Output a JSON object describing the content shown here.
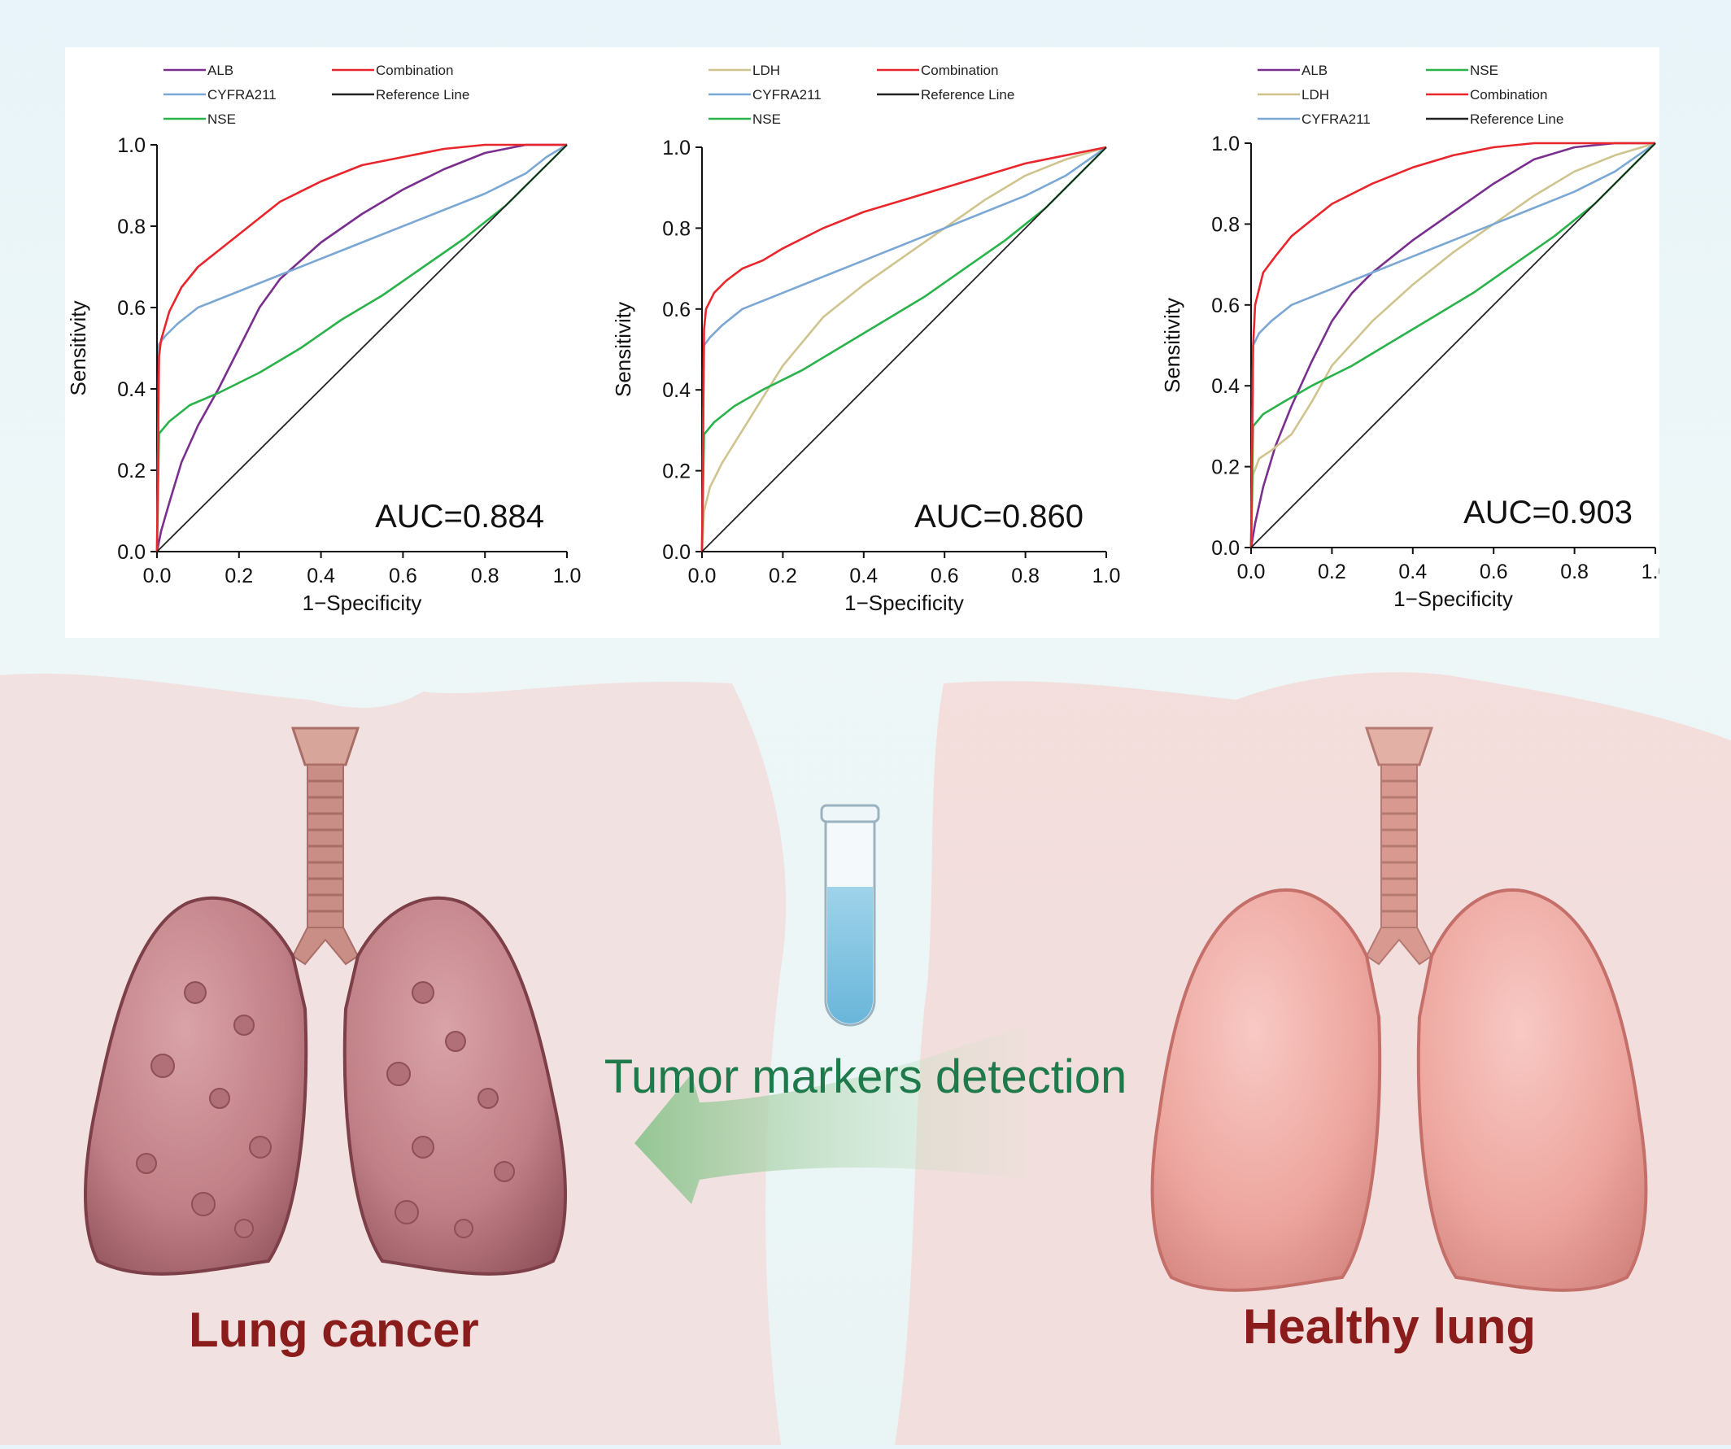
{
  "chart_data": [
    {
      "type": "line",
      "xlabel": "1−Specificity",
      "ylabel": "Sensitivity",
      "xlim": [
        0,
        1
      ],
      "ylim": [
        0,
        1
      ],
      "ticks": [
        "0.0",
        "0.2",
        "0.4",
        "0.6",
        "0.8",
        "1.0"
      ],
      "annotation": "AUC=0.884",
      "legend": {
        "placement": "top"
      },
      "series": [
        {
          "name": "ALB",
          "color": "#7a2e8e",
          "x": [
            0,
            0.01,
            0.03,
            0.06,
            0.1,
            0.15,
            0.2,
            0.25,
            0.3,
            0.4,
            0.5,
            0.6,
            0.7,
            0.8,
            0.9,
            1.0
          ],
          "y": [
            0,
            0.05,
            0.12,
            0.22,
            0.31,
            0.4,
            0.5,
            0.6,
            0.67,
            0.76,
            0.83,
            0.89,
            0.94,
            0.98,
            1.0,
            1.0
          ]
        },
        {
          "name": "CYFRA211",
          "color": "#7ba7d4",
          "x": [
            0,
            0.005,
            0.02,
            0.05,
            0.1,
            0.2,
            0.3,
            0.4,
            0.5,
            0.6,
            0.7,
            0.8,
            0.9,
            0.95,
            1.0
          ],
          "y": [
            0,
            0.51,
            0.53,
            0.56,
            0.6,
            0.64,
            0.68,
            0.72,
            0.76,
            0.8,
            0.84,
            0.88,
            0.93,
            0.97,
            1.0
          ]
        },
        {
          "name": "NSE",
          "color": "#2ab34a",
          "x": [
            0,
            0.005,
            0.03,
            0.08,
            0.15,
            0.25,
            0.35,
            0.45,
            0.55,
            0.65,
            0.75,
            0.85,
            0.92,
            1.0
          ],
          "y": [
            0,
            0.29,
            0.32,
            0.36,
            0.39,
            0.44,
            0.5,
            0.57,
            0.63,
            0.7,
            0.77,
            0.85,
            0.92,
            1.0
          ]
        },
        {
          "name": "Combination",
          "color": "#e8262b",
          "x": [
            0,
            0.005,
            0.01,
            0.03,
            0.06,
            0.1,
            0.15,
            0.2,
            0.25,
            0.3,
            0.4,
            0.5,
            0.6,
            0.7,
            0.8,
            0.9,
            1.0
          ],
          "y": [
            0,
            0.48,
            0.52,
            0.59,
            0.65,
            0.7,
            0.74,
            0.78,
            0.82,
            0.86,
            0.91,
            0.95,
            0.97,
            0.99,
            1.0,
            1.0,
            1.0
          ]
        },
        {
          "name": "Reference Line",
          "color": "#222222",
          "x": [
            0,
            1
          ],
          "y": [
            0,
            1
          ]
        }
      ]
    },
    {
      "type": "line",
      "xlabel": "1−Specificity",
      "ylabel": "Sensitivity",
      "xlim": [
        0,
        1
      ],
      "ylim": [
        0,
        1
      ],
      "ticks": [
        "0.0",
        "0.2",
        "0.4",
        "0.6",
        "0.8",
        "1.0"
      ],
      "annotation": "AUC=0.860",
      "legend": {
        "placement": "top"
      },
      "series": [
        {
          "name": "LDH",
          "color": "#cfc48e",
          "x": [
            0,
            0.005,
            0.02,
            0.05,
            0.1,
            0.15,
            0.2,
            0.3,
            0.4,
            0.5,
            0.6,
            0.7,
            0.8,
            0.9,
            1.0
          ],
          "y": [
            0,
            0.1,
            0.16,
            0.22,
            0.3,
            0.38,
            0.46,
            0.58,
            0.66,
            0.73,
            0.8,
            0.87,
            0.93,
            0.97,
            1.0
          ]
        },
        {
          "name": "CYFRA211",
          "color": "#7ba7d4",
          "x": [
            0,
            0.005,
            0.02,
            0.05,
            0.1,
            0.2,
            0.3,
            0.4,
            0.5,
            0.6,
            0.7,
            0.8,
            0.9,
            1.0
          ],
          "y": [
            0,
            0.51,
            0.53,
            0.56,
            0.6,
            0.64,
            0.68,
            0.72,
            0.76,
            0.8,
            0.84,
            0.88,
            0.93,
            1.0
          ]
        },
        {
          "name": "NSE",
          "color": "#2ab34a",
          "x": [
            0,
            0.005,
            0.03,
            0.08,
            0.15,
            0.25,
            0.35,
            0.45,
            0.55,
            0.65,
            0.75,
            0.85,
            0.92,
            1.0
          ],
          "y": [
            0,
            0.29,
            0.32,
            0.36,
            0.4,
            0.45,
            0.51,
            0.57,
            0.63,
            0.7,
            0.77,
            0.85,
            0.92,
            1.0
          ]
        },
        {
          "name": "Combination",
          "color": "#e8262b",
          "x": [
            0,
            0.005,
            0.01,
            0.03,
            0.06,
            0.1,
            0.15,
            0.2,
            0.3,
            0.4,
            0.5,
            0.6,
            0.7,
            0.8,
            0.9,
            1.0
          ],
          "y": [
            0,
            0.55,
            0.6,
            0.64,
            0.67,
            0.7,
            0.72,
            0.75,
            0.8,
            0.84,
            0.87,
            0.9,
            0.93,
            0.96,
            0.98,
            1.0
          ]
        },
        {
          "name": "Reference Line",
          "color": "#222222",
          "x": [
            0,
            1
          ],
          "y": [
            0,
            1
          ]
        }
      ]
    },
    {
      "type": "line",
      "xlabel": "1−Specificity",
      "ylabel": "Sensitivity",
      "xlim": [
        0,
        1
      ],
      "ylim": [
        0,
        1
      ],
      "ticks": [
        "0.0",
        "0.2",
        "0.4",
        "0.6",
        "0.8",
        "1.0"
      ],
      "annotation": "AUC=0.903",
      "legend": {
        "placement": "top"
      },
      "series": [
        {
          "name": "ALB",
          "color": "#7a2e8e",
          "x": [
            0,
            0.01,
            0.03,
            0.06,
            0.1,
            0.15,
            0.2,
            0.25,
            0.3,
            0.4,
            0.5,
            0.6,
            0.7,
            0.8,
            0.9,
            1.0
          ],
          "y": [
            0,
            0.06,
            0.15,
            0.25,
            0.35,
            0.46,
            0.56,
            0.63,
            0.68,
            0.76,
            0.83,
            0.9,
            0.96,
            0.99,
            1.0,
            1.0
          ]
        },
        {
          "name": "LDH",
          "color": "#cfc48e",
          "x": [
            0,
            0.005,
            0.02,
            0.05,
            0.1,
            0.15,
            0.2,
            0.3,
            0.4,
            0.5,
            0.6,
            0.7,
            0.8,
            0.9,
            1.0
          ],
          "y": [
            0,
            0.18,
            0.22,
            0.24,
            0.28,
            0.36,
            0.45,
            0.56,
            0.65,
            0.73,
            0.8,
            0.87,
            0.93,
            0.97,
            1.0
          ]
        },
        {
          "name": "CYFRA211",
          "color": "#7ba7d4",
          "x": [
            0,
            0.005,
            0.02,
            0.05,
            0.1,
            0.2,
            0.3,
            0.4,
            0.5,
            0.6,
            0.7,
            0.8,
            0.9,
            1.0
          ],
          "y": [
            0,
            0.5,
            0.53,
            0.56,
            0.6,
            0.64,
            0.68,
            0.72,
            0.76,
            0.8,
            0.84,
            0.88,
            0.93,
            1.0
          ]
        },
        {
          "name": "NSE",
          "color": "#2ab34a",
          "x": [
            0,
            0.005,
            0.03,
            0.08,
            0.15,
            0.25,
            0.35,
            0.45,
            0.55,
            0.65,
            0.75,
            0.85,
            0.92,
            1.0
          ],
          "y": [
            0,
            0.3,
            0.33,
            0.36,
            0.4,
            0.45,
            0.51,
            0.57,
            0.63,
            0.7,
            0.77,
            0.85,
            0.92,
            1.0
          ]
        },
        {
          "name": "Combination",
          "color": "#e8262b",
          "x": [
            0,
            0.005,
            0.01,
            0.03,
            0.06,
            0.1,
            0.15,
            0.2,
            0.3,
            0.4,
            0.5,
            0.6,
            0.7,
            0.8,
            0.9,
            1.0
          ],
          "y": [
            0,
            0.5,
            0.6,
            0.68,
            0.72,
            0.77,
            0.81,
            0.85,
            0.9,
            0.94,
            0.97,
            0.99,
            1.0,
            1.0,
            1.0,
            1.0
          ]
        },
        {
          "name": "Reference Line",
          "color": "#222222",
          "x": [
            0,
            1
          ],
          "y": [
            0,
            1
          ]
        }
      ]
    }
  ],
  "illustration": {
    "left_label": "Lung cancer",
    "right_label": "Healthy lung",
    "center_label": "Tumor markers detection",
    "left_label_color": "#8a1c1c",
    "center_label_color": "#1f7a4b",
    "icons": [
      "test-tube-icon",
      "arrow-left-icon",
      "diseased-lung-icon",
      "healthy-lung-icon"
    ]
  }
}
